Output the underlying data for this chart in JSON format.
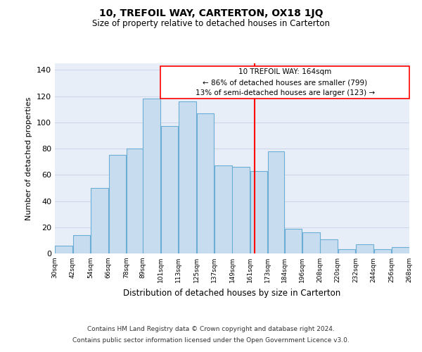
{
  "title": "10, TREFOIL WAY, CARTERTON, OX18 1JQ",
  "subtitle": "Size of property relative to detached houses in Carterton",
  "xlabel": "Distribution of detached houses by size in Carterton",
  "ylabel": "Number of detached properties",
  "footer_line1": "Contains HM Land Registry data © Crown copyright and database right 2024.",
  "footer_line2": "Contains public sector information licensed under the Open Government Licence v3.0.",
  "bar_left_edges": [
    30,
    42,
    54,
    66,
    78,
    89,
    101,
    113,
    125,
    137,
    149,
    161,
    173,
    184,
    196,
    208,
    220,
    232,
    244,
    256
  ],
  "bar_widths": [
    12,
    12,
    12,
    12,
    11,
    12,
    12,
    12,
    12,
    12,
    12,
    12,
    11,
    12,
    12,
    12,
    12,
    12,
    12,
    12
  ],
  "bar_heights": [
    6,
    14,
    50,
    75,
    80,
    118,
    97,
    116,
    107,
    67,
    66,
    63,
    78,
    19,
    16,
    11,
    3,
    7,
    3,
    5
  ],
  "bar_color": "#c8dcf0",
  "bar_edgecolor": "#6aaed6",
  "red_line_x": 164,
  "annotation_text_line1": "10 TREFOIL WAY: 164sqm",
  "annotation_text_line2": "← 86% of detached houses are smaller (799)",
  "annotation_text_line3": "13% of semi-detached houses are larger (123) →",
  "tick_labels": [
    "30sqm",
    "42sqm",
    "54sqm",
    "66sqm",
    "78sqm",
    "89sqm",
    "101sqm",
    "113sqm",
    "125sqm",
    "137sqm",
    "149sqm",
    "161sqm",
    "173sqm",
    "184sqm",
    "196sqm",
    "208sqm",
    "220sqm",
    "232sqm",
    "244sqm",
    "256sqm",
    "268sqm"
  ],
  "ylim": [
    0,
    145
  ],
  "yticks": [
    0,
    20,
    40,
    60,
    80,
    100,
    120,
    140
  ],
  "ax_facecolor": "#e8eef8",
  "background_color": "#ffffff",
  "grid_color": "#d0d8e8"
}
